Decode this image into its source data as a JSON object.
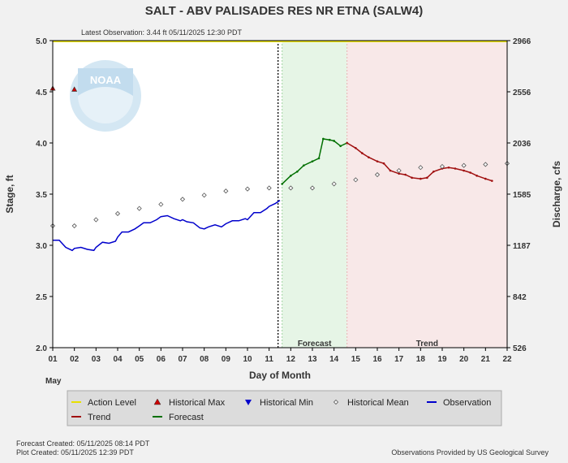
{
  "chart_data": {
    "type": "line",
    "title": "SALT - ABV PALISADES RES NR ETNA  (SALW4)",
    "subtitle": "Latest Observation: 3.44 ft 05/11/2025 12:30 PDT",
    "xlabel": "Day of Month",
    "ylabel_left": "Stage, ft",
    "ylabel_right": "Discharge, cfs",
    "month_label": "May",
    "x_ticks": [
      "01",
      "02",
      "03",
      "04",
      "05",
      "06",
      "07",
      "08",
      "09",
      "10",
      "11",
      "12",
      "13",
      "14",
      "15",
      "16",
      "17",
      "18",
      "19",
      "20",
      "21",
      "22"
    ],
    "x_range": [
      1,
      22
    ],
    "y_range": [
      2.0,
      5.0
    ],
    "y_ticks": [
      "2.0",
      "2.5",
      "3.0",
      "3.5",
      "4.0",
      "4.5",
      "5.0"
    ],
    "y_tick_values": [
      2.0,
      2.5,
      3.0,
      3.5,
      4.0,
      4.5,
      5.0
    ],
    "y2_ticks": [
      "526",
      "842",
      "1187",
      "1585",
      "2036",
      "2556",
      "2966"
    ],
    "grid": false,
    "region_labels": {
      "forecast": "Forecast",
      "trend": "Trend"
    },
    "forecast_region": [
      11.6,
      14.6
    ],
    "trend_region": [
      14.6,
      22
    ],
    "action_level": 5.0,
    "colors": {
      "observation": "#0000cc",
      "forecast": "#007000",
      "trend": "#a01010",
      "action_level": "#e8e000",
      "historical_max": "#cc0000",
      "historical_min": "#0000cc",
      "forecast_bg": "#e6f5e6",
      "trend_bg": "#f8e8e8",
      "plot_bg": "#ffffff"
    },
    "series": [
      {
        "name": "Observation",
        "points": [
          [
            1.0,
            3.05
          ],
          [
            1.3,
            3.05
          ],
          [
            1.6,
            2.98
          ],
          [
            1.9,
            2.95
          ],
          [
            2.0,
            2.97
          ],
          [
            2.3,
            2.98
          ],
          [
            2.6,
            2.96
          ],
          [
            2.9,
            2.95
          ],
          [
            3.0,
            2.98
          ],
          [
            3.3,
            3.03
          ],
          [
            3.6,
            3.02
          ],
          [
            3.9,
            3.04
          ],
          [
            4.0,
            3.08
          ],
          [
            4.2,
            3.13
          ],
          [
            4.5,
            3.13
          ],
          [
            4.8,
            3.16
          ],
          [
            5.0,
            3.19
          ],
          [
            5.2,
            3.22
          ],
          [
            5.5,
            3.22
          ],
          [
            5.8,
            3.25
          ],
          [
            6.0,
            3.28
          ],
          [
            6.3,
            3.29
          ],
          [
            6.6,
            3.26
          ],
          [
            6.9,
            3.24
          ],
          [
            7.0,
            3.25
          ],
          [
            7.2,
            3.23
          ],
          [
            7.5,
            3.22
          ],
          [
            7.8,
            3.17
          ],
          [
            8.0,
            3.16
          ],
          [
            8.2,
            3.18
          ],
          [
            8.5,
            3.2
          ],
          [
            8.8,
            3.18
          ],
          [
            9.0,
            3.21
          ],
          [
            9.3,
            3.24
          ],
          [
            9.6,
            3.24
          ],
          [
            9.9,
            3.26
          ],
          [
            10.0,
            3.25
          ],
          [
            10.3,
            3.32
          ],
          [
            10.6,
            3.32
          ],
          [
            10.9,
            3.36
          ],
          [
            11.0,
            3.38
          ],
          [
            11.3,
            3.41
          ],
          [
            11.5,
            3.44
          ]
        ]
      },
      {
        "name": "Forecast",
        "points": [
          [
            11.6,
            3.6
          ],
          [
            12.0,
            3.68
          ],
          [
            12.3,
            3.72
          ],
          [
            12.6,
            3.78
          ],
          [
            13.0,
            3.82
          ],
          [
            13.3,
            3.85
          ],
          [
            13.5,
            4.04
          ],
          [
            13.8,
            4.03
          ],
          [
            14.0,
            4.02
          ],
          [
            14.3,
            3.97
          ],
          [
            14.6,
            4.0
          ]
        ]
      },
      {
        "name": "Trend",
        "points": [
          [
            14.6,
            4.0
          ],
          [
            15.0,
            3.95
          ],
          [
            15.3,
            3.9
          ],
          [
            15.6,
            3.86
          ],
          [
            16.0,
            3.82
          ],
          [
            16.3,
            3.8
          ],
          [
            16.6,
            3.73
          ],
          [
            17.0,
            3.7
          ],
          [
            17.3,
            3.69
          ],
          [
            17.6,
            3.66
          ],
          [
            18.0,
            3.65
          ],
          [
            18.3,
            3.66
          ],
          [
            18.6,
            3.72
          ],
          [
            19.0,
            3.75
          ],
          [
            19.3,
            3.76
          ],
          [
            19.6,
            3.75
          ],
          [
            20.0,
            3.73
          ],
          [
            20.3,
            3.71
          ],
          [
            20.6,
            3.68
          ],
          [
            21.0,
            3.65
          ],
          [
            21.3,
            3.63
          ]
        ]
      },
      {
        "name": "Historical Mean",
        "points": [
          [
            1.0,
            3.19
          ],
          [
            2.0,
            3.19
          ],
          [
            3.0,
            3.25
          ],
          [
            4.0,
            3.31
          ],
          [
            5.0,
            3.36
          ],
          [
            6.0,
            3.4
          ],
          [
            7.0,
            3.45
          ],
          [
            8.0,
            3.49
          ],
          [
            9.0,
            3.53
          ],
          [
            10.0,
            3.55
          ],
          [
            11.0,
            3.56
          ],
          [
            12.0,
            3.56
          ],
          [
            13.0,
            3.56
          ],
          [
            14.0,
            3.6
          ],
          [
            15.0,
            3.64
          ],
          [
            16.0,
            3.69
          ],
          [
            17.0,
            3.73
          ],
          [
            18.0,
            3.76
          ],
          [
            19.0,
            3.77
          ],
          [
            20.0,
            3.78
          ],
          [
            21.0,
            3.79
          ],
          [
            22.0,
            3.8
          ]
        ]
      },
      {
        "name": "Historical Max",
        "points": [
          [
            1.0,
            4.53
          ],
          [
            2.0,
            4.52
          ]
        ]
      }
    ],
    "legend": [
      {
        "label": "Action Level",
        "marker": "line",
        "key": "action_level"
      },
      {
        "label": "Historical Max",
        "marker": "triangle-up",
        "key": "historical_max"
      },
      {
        "label": "Historical Min",
        "marker": "triangle-down",
        "key": "historical_min"
      },
      {
        "label": "Historical Mean",
        "marker": "diamond",
        "key": "historical_mean"
      },
      {
        "label": "Observation",
        "marker": "line",
        "key": "observation"
      },
      {
        "label": "Trend",
        "marker": "line",
        "key": "trend"
      },
      {
        "label": "Forecast",
        "marker": "line",
        "key": "forecast"
      }
    ]
  },
  "footer": {
    "forecast_created": "Forecast Created: 05/11/2025 08:14 PDT",
    "plot_created": "Plot Created: 05/11/2025 12:39 PDT",
    "provider": "Observations Provided by US Geological Survey"
  },
  "logo": {
    "text": "NOAA"
  }
}
